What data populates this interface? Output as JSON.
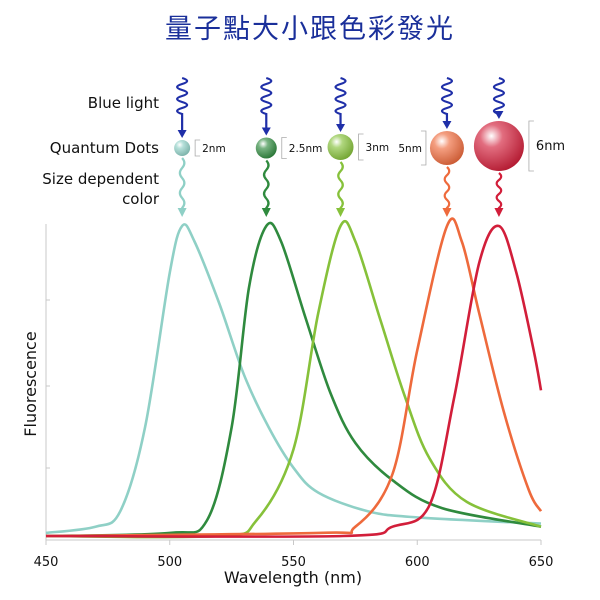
{
  "title": "量子點大小跟色彩發光",
  "labels": {
    "blue_light": "Blue light",
    "quantum_dots": "Quantum Dots",
    "size_dependent_line1": "Size dependent",
    "size_dependent_line2": "color"
  },
  "colors": {
    "title": "#1a2f9a",
    "blue_light": "#1f2fa8"
  },
  "dots": [
    {
      "size_label": "2nm",
      "color": "#8fd0c6",
      "peak_nm": 505
    },
    {
      "size_label": "2.5nm",
      "color": "#2f8a3e",
      "peak_nm": 539
    },
    {
      "size_label": "3nm",
      "color": "#86c13a",
      "peak_nm": 569
    },
    {
      "size_label": "5nm",
      "color": "#ee6a3c",
      "peak_nm": 612
    },
    {
      "size_label": "6nm",
      "color": "#d21e3a",
      "peak_nm": 633
    }
  ],
  "chart_data": {
    "type": "line",
    "xlabel": "Wavelength (nm)",
    "ylabel": "Fluorescence",
    "xlim": [
      450,
      650
    ],
    "x_ticks": [
      "450",
      "500",
      "550",
      "600",
      "650"
    ],
    "y_ticks_labeled": false,
    "series": [
      {
        "color": "#8fd0c6",
        "peak_nm": 505,
        "points": [
          [
            450,
            0.01
          ],
          [
            470,
            0.03
          ],
          [
            480,
            0.08
          ],
          [
            490,
            0.35
          ],
          [
            500,
            0.85
          ],
          [
            505,
            1.0
          ],
          [
            510,
            0.95
          ],
          [
            520,
            0.75
          ],
          [
            530,
            0.52
          ],
          [
            540,
            0.35
          ],
          [
            550,
            0.22
          ],
          [
            560,
            0.14
          ],
          [
            580,
            0.08
          ],
          [
            600,
            0.06
          ],
          [
            650,
            0.04
          ]
        ]
      },
      {
        "color": "#2f8a3e",
        "peak_nm": 539,
        "points": [
          [
            450,
            0.0
          ],
          [
            500,
            0.01
          ],
          [
            515,
            0.05
          ],
          [
            525,
            0.35
          ],
          [
            532,
            0.8
          ],
          [
            539,
            1.0
          ],
          [
            545,
            0.95
          ],
          [
            555,
            0.7
          ],
          [
            565,
            0.46
          ],
          [
            575,
            0.3
          ],
          [
            590,
            0.18
          ],
          [
            610,
            0.09
          ],
          [
            650,
            0.03
          ]
        ]
      },
      {
        "color": "#86c13a",
        "peak_nm": 569,
        "points": [
          [
            450,
            0.0
          ],
          [
            520,
            0.0
          ],
          [
            535,
            0.05
          ],
          [
            550,
            0.28
          ],
          [
            560,
            0.72
          ],
          [
            569,
            1.0
          ],
          [
            575,
            0.95
          ],
          [
            585,
            0.7
          ],
          [
            595,
            0.45
          ],
          [
            605,
            0.25
          ],
          [
            620,
            0.11
          ],
          [
            650,
            0.03
          ]
        ]
      },
      {
        "color": "#ee6a3c",
        "peak_nm": 612,
        "points": [
          [
            450,
            0.0
          ],
          [
            560,
            0.01
          ],
          [
            575,
            0.03
          ],
          [
            590,
            0.2
          ],
          [
            600,
            0.6
          ],
          [
            612,
            1.0
          ],
          [
            618,
            0.95
          ],
          [
            625,
            0.72
          ],
          [
            635,
            0.4
          ],
          [
            645,
            0.15
          ],
          [
            650,
            0.08
          ]
        ]
      },
      {
        "color": "#d21e3a",
        "peak_nm": 633,
        "points": [
          [
            450,
            0.0
          ],
          [
            570,
            0.0
          ],
          [
            590,
            0.03
          ],
          [
            605,
            0.1
          ],
          [
            615,
            0.45
          ],
          [
            625,
            0.88
          ],
          [
            633,
            1.0
          ],
          [
            640,
            0.85
          ],
          [
            647,
            0.6
          ],
          [
            650,
            0.47
          ]
        ]
      }
    ]
  }
}
